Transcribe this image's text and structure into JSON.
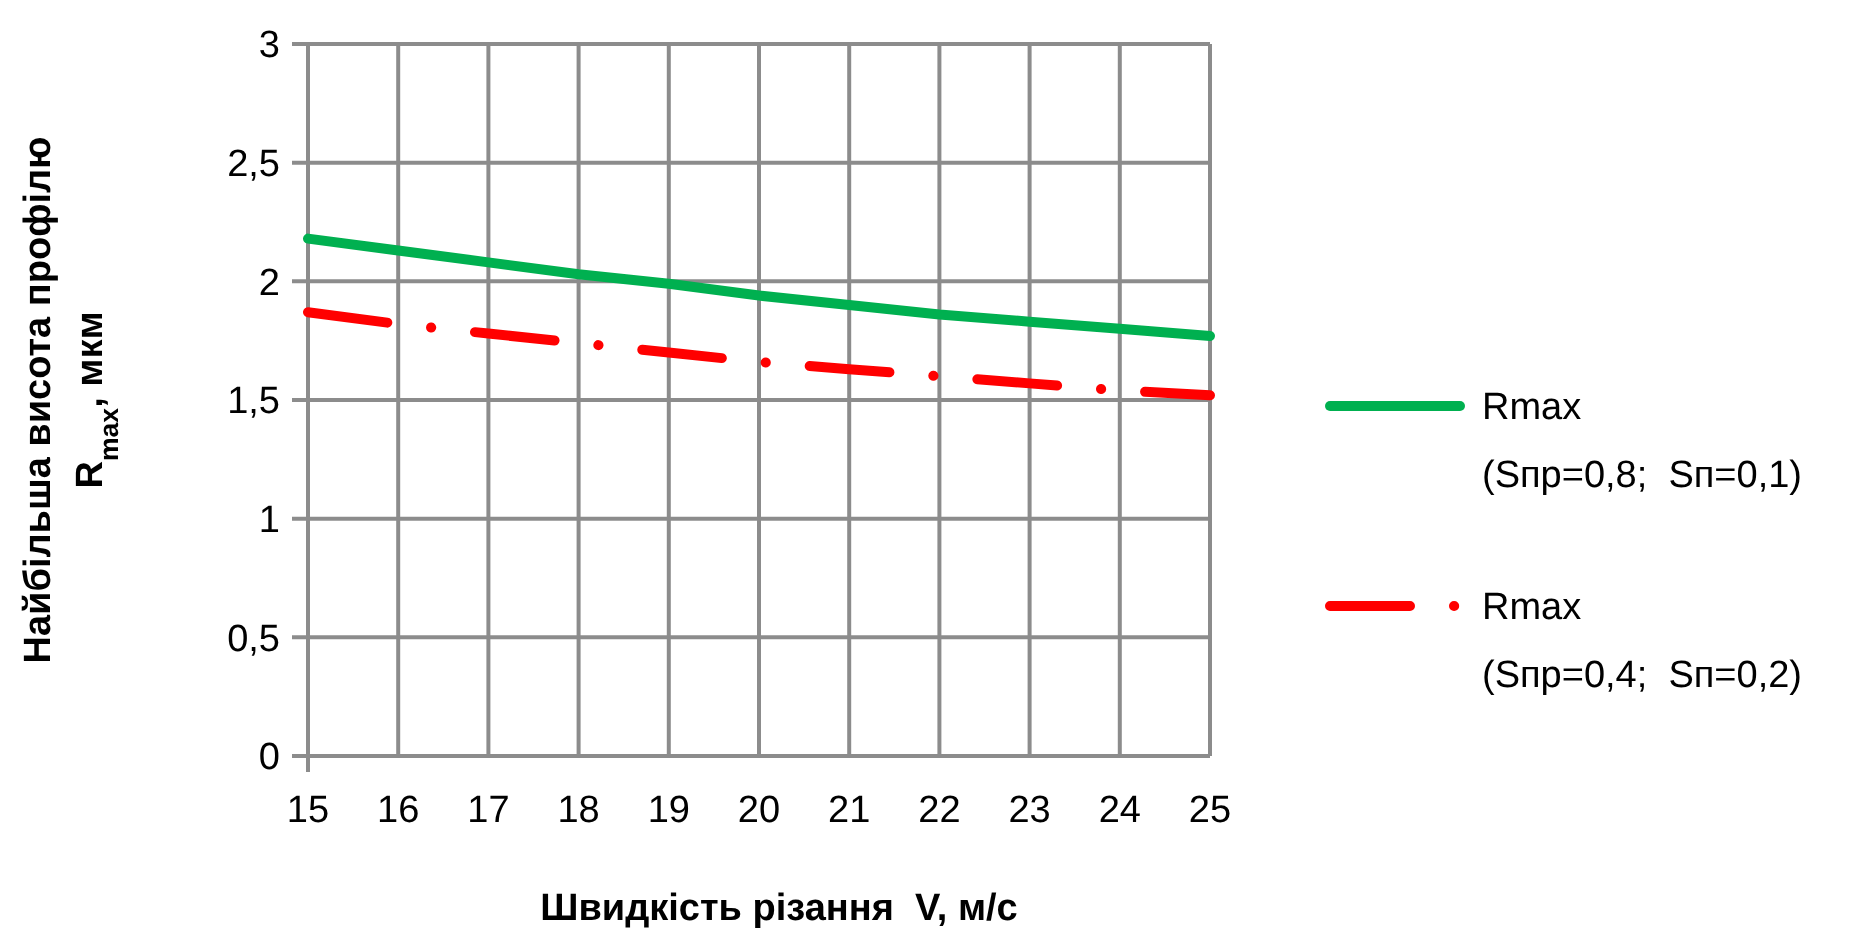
{
  "chart_data": {
    "type": "line",
    "xlabel": "Швидкість різання  V, м/с",
    "ylabel": "Найбільша  висота  профілю\nR$_{max}$, мкм",
    "x": [
      15,
      16,
      17,
      18,
      19,
      20,
      21,
      22,
      23,
      24,
      25
    ],
    "series": [
      {
        "name": "Rmax (Sпр=0,8;  Sп=0,1)",
        "color": "#00b050",
        "line_style": "solid",
        "values": [
          2.18,
          2.13,
          2.08,
          2.03,
          1.99,
          1.94,
          1.9,
          1.86,
          1.83,
          1.8,
          1.77
        ]
      },
      {
        "name": "Rmax (Sпр=0,4;  Sп=0,2)",
        "color": "#ff0000",
        "line_style": "dashed",
        "values": [
          1.87,
          1.82,
          1.78,
          1.74,
          1.7,
          1.66,
          1.63,
          1.6,
          1.57,
          1.54,
          1.52
        ]
      }
    ],
    "xlim": [
      15,
      25
    ],
    "xticks": [
      15,
      16,
      17,
      18,
      19,
      20,
      21,
      22,
      23,
      24,
      25
    ],
    "ylim": [
      0,
      3
    ],
    "yticks": [
      0,
      {
        "value": 0.5,
        "label": "0,5"
      },
      1,
      {
        "value": 1.5,
        "label": "1,5"
      },
      2,
      {
        "value": 2.5,
        "label": "2,5"
      },
      3
    ],
    "grid": true,
    "legend": "right",
    "marker": "none"
  }
}
